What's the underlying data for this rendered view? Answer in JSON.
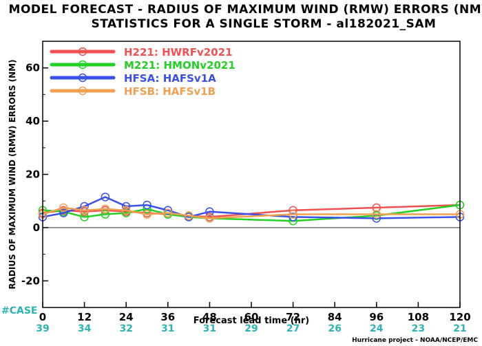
{
  "chart_data": {
    "type": "line",
    "title": "MODEL FORECAST - RADIUS OF MAXIMUM WIND (RMW) ERRORS (NM)",
    "subtitle": "STATISTICS FOR A SINGLE STORM - al182021_SAM",
    "xlabel": "Forecast lead time (hr)",
    "ylabel": "RADIUS OF MAXIMUM WIND (RMW) ERRORS (NM)",
    "xlim": [
      0,
      120
    ],
    "ylim": [
      -30,
      70
    ],
    "x_ticks": [
      0,
      12,
      24,
      36,
      48,
      60,
      72,
      84,
      96,
      108,
      120
    ],
    "y_ticks": [
      -20,
      0,
      20,
      40,
      60
    ],
    "grid": false,
    "zero_line": true,
    "legend_position": "top-left",
    "case_label": "#CASE",
    "case_counts": [
      39,
      34,
      32,
      31,
      31,
      29,
      27,
      26,
      24,
      23,
      21
    ],
    "series": [
      {
        "name": "H221: HWRFv2021",
        "color": "#f05050",
        "x": [
          0,
          6,
          12,
          18,
          24,
          30,
          36,
          42,
          48,
          72,
          96,
          120
        ],
        "y": [
          5.5,
          6.5,
          6.0,
          6.5,
          6.0,
          5.5,
          5.0,
          4.5,
          4.0,
          6.5,
          7.5,
          8.5
        ]
      },
      {
        "name": "M221: HMONv2021",
        "color": "#22d022",
        "x": [
          0,
          6,
          12,
          18,
          24,
          30,
          36,
          42,
          48,
          72,
          96,
          120
        ],
        "y": [
          6.5,
          6.0,
          4.0,
          5.0,
          5.5,
          7.0,
          5.0,
          4.0,
          3.5,
          2.5,
          4.5,
          8.5
        ]
      },
      {
        "name": "HFSA: HAFSv1A",
        "color": "#3850e8",
        "x": [
          0,
          6,
          12,
          18,
          24,
          30,
          36,
          42,
          48,
          72,
          96,
          120
        ],
        "y": [
          4.0,
          5.5,
          8.0,
          11.5,
          8.0,
          8.5,
          6.5,
          4.0,
          6.0,
          4.0,
          3.5,
          4.0
        ]
      },
      {
        "name": "HFSB: HAFSv1B",
        "color": "#f0a050",
        "x": [
          0,
          6,
          12,
          18,
          24,
          30,
          36,
          42,
          48,
          72,
          96,
          120
        ],
        "y": [
          5.0,
          7.5,
          6.5,
          7.0,
          6.5,
          5.0,
          5.5,
          4.5,
          3.5,
          5.0,
          5.0,
          5.0
        ]
      }
    ],
    "credit": "Hurricane project - NOAA/NCEP/EMC"
  }
}
